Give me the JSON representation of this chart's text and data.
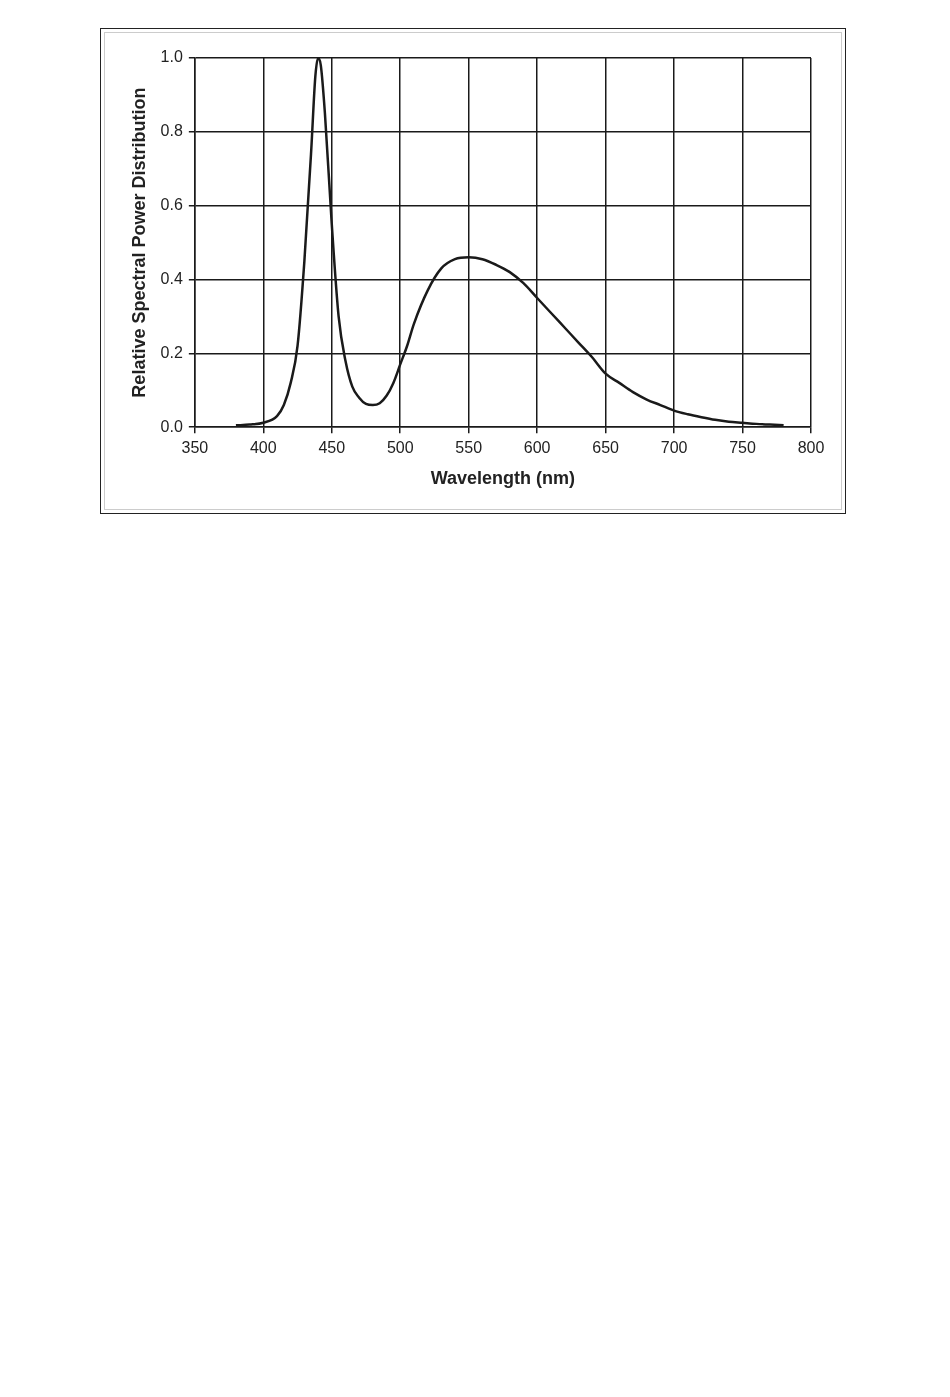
{
  "chart_data": {
    "type": "line",
    "xlabel": "Wavelength (nm)",
    "ylabel": "Relative Spectral Power Distribution",
    "xlim": [
      350,
      800
    ],
    "xticks": [
      350,
      400,
      450,
      500,
      550,
      600,
      650,
      700,
      750,
      800
    ],
    "ylim": [
      0,
      1
    ],
    "yticks": [
      {
        "value": 0,
        "label": "0.0"
      },
      {
        "value": 0.2,
        "label": "0.2"
      },
      {
        "value": 0.4,
        "label": "0.4"
      },
      {
        "value": 0.6,
        "label": "0.6"
      },
      {
        "value": 0.8,
        "label": "0.8"
      },
      {
        "value": 1,
        "label": "1.0"
      }
    ],
    "grid": true,
    "legend": false,
    "marker": "none",
    "line_style": "solid",
    "series": [
      {
        "color": "#1a1a1a",
        "x": [
          380,
          390,
          400,
          410,
          415,
          420,
          425,
          430,
          435,
          438,
          440,
          442,
          445,
          450,
          455,
          460,
          465,
          470,
          475,
          480,
          485,
          490,
          495,
          500,
          505,
          510,
          520,
          530,
          540,
          550,
          560,
          570,
          580,
          590,
          600,
          610,
          620,
          630,
          640,
          650,
          660,
          670,
          680,
          690,
          700,
          710,
          720,
          730,
          740,
          750,
          760,
          770,
          780
        ],
        "values": [
          0.005,
          0.007,
          0.012,
          0.03,
          0.06,
          0.12,
          0.22,
          0.45,
          0.75,
          0.95,
          1.0,
          0.98,
          0.85,
          0.55,
          0.3,
          0.18,
          0.11,
          0.08,
          0.063,
          0.06,
          0.065,
          0.085,
          0.12,
          0.17,
          0.22,
          0.28,
          0.37,
          0.43,
          0.455,
          0.46,
          0.455,
          0.44,
          0.42,
          0.39,
          0.35,
          0.31,
          0.27,
          0.23,
          0.19,
          0.145,
          0.12,
          0.095,
          0.075,
          0.06,
          0.045,
          0.035,
          0.027,
          0.02,
          0.015,
          0.012,
          0.009,
          0.007,
          0.005
        ]
      }
    ]
  }
}
